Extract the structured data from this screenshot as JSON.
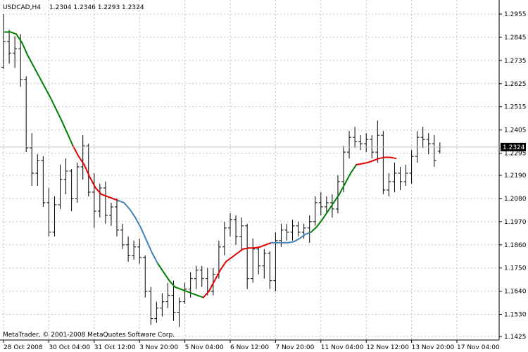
{
  "header": {
    "symbol": "USDCAD,H4",
    "ohlc_values": "1.2304 1.2346 1.2293 1.2324"
  },
  "footer": {
    "copyright": "MetaTrader, © 2001-2008 MetaQuotes Software Corp."
  },
  "colors": {
    "background": "#ffffff",
    "bars": "#000000",
    "grid": "#c0c0c0",
    "ma_green": "#008000",
    "ma_red": "#e00000",
    "ma_blue": "#4682b4",
    "current_price_badge": "#000000"
  },
  "chart_data": {
    "type": "ohlc",
    "current_price": "1.2324",
    "current_price_value": 1.2324,
    "y_ticks": [
      "1.2955",
      "1.2845",
      "1.2735",
      "1.2625",
      "1.2515",
      "1.2405",
      "1.2295",
      "1.2190",
      "1.2080",
      "1.1970",
      "1.1860",
      "1.1750",
      "1.1640",
      "1.1530",
      "1.1425"
    ],
    "y_tick_values": [
      1.2955,
      1.2845,
      1.2735,
      1.2625,
      1.2515,
      1.2405,
      1.2295,
      1.219,
      1.208,
      1.197,
      1.186,
      1.175,
      1.164,
      1.153,
      1.1425
    ],
    "ylim": [
      1.1425,
      1.3005
    ],
    "x_ticks": [
      "28 Oct 2008",
      "30 Oct 04:00",
      "31 Oct 12:00",
      "3 Nov 20:00",
      "5 Nov 04:00",
      "6 Nov 12:00",
      "7 Nov 20:00",
      "11 Nov 04:00",
      "12 Nov 12:00",
      "13 Nov 20:00",
      "17 Nov 04:00"
    ],
    "x_tick_bar_index": [
      0,
      8,
      16,
      24,
      32,
      40,
      48,
      56,
      64,
      72,
      80
    ],
    "grid": true,
    "bars": [
      [
        1.2703,
        1.2955,
        1.2695,
        1.2825
      ],
      [
        1.2825,
        1.288,
        1.272,
        1.277
      ],
      [
        1.277,
        1.285,
        1.27,
        1.279
      ],
      [
        1.279,
        1.286,
        1.261,
        1.2645
      ],
      [
        1.2645,
        1.266,
        1.23,
        1.232
      ],
      [
        1.232,
        1.239,
        1.214,
        1.22
      ],
      [
        1.22,
        1.229,
        1.214,
        1.226
      ],
      [
        1.226,
        1.228,
        1.204,
        1.206
      ],
      [
        1.206,
        1.213,
        1.19,
        1.192
      ],
      [
        1.192,
        1.209,
        1.19,
        1.205
      ],
      [
        1.205,
        1.224,
        1.203,
        1.217
      ],
      [
        1.217,
        1.227,
        1.21,
        1.221
      ],
      [
        1.221,
        1.222,
        1.202,
        1.208
      ],
      [
        1.208,
        1.225,
        1.206,
        1.223
      ],
      [
        1.223,
        1.238,
        1.217,
        1.233
      ],
      [
        1.233,
        1.234,
        1.209,
        1.211
      ],
      [
        1.211,
        1.22,
        1.194,
        1.202
      ],
      [
        1.202,
        1.215,
        1.199,
        1.213
      ],
      [
        1.213,
        1.216,
        1.196,
        1.2
      ],
      [
        1.2,
        1.206,
        1.195,
        1.204
      ],
      [
        1.204,
        1.208,
        1.19,
        1.193
      ],
      [
        1.193,
        1.196,
        1.184,
        1.186
      ],
      [
        1.186,
        1.19,
        1.178,
        1.181
      ],
      [
        1.181,
        1.188,
        1.179,
        1.185
      ],
      [
        1.185,
        1.189,
        1.177,
        1.18
      ],
      [
        1.18,
        1.181,
        1.161,
        1.164
      ],
      [
        1.164,
        1.166,
        1.148,
        1.151
      ],
      [
        1.151,
        1.159,
        1.149,
        1.156
      ],
      [
        1.156,
        1.163,
        1.152,
        1.159
      ],
      [
        1.159,
        1.168,
        1.156,
        1.162
      ],
      [
        1.162,
        1.169,
        1.15,
        1.154
      ],
      [
        1.154,
        1.161,
        1.147,
        1.159
      ],
      [
        1.159,
        1.168,
        1.158,
        1.165
      ],
      [
        1.165,
        1.173,
        1.161,
        1.17
      ],
      [
        1.17,
        1.176,
        1.165,
        1.174
      ],
      [
        1.174,
        1.176,
        1.166,
        1.17
      ],
      [
        1.17,
        1.175,
        1.162,
        1.164
      ],
      [
        1.164,
        1.175,
        1.162,
        1.172
      ],
      [
        1.172,
        1.188,
        1.17,
        1.185
      ],
      [
        1.185,
        1.197,
        1.181,
        1.194
      ],
      [
        1.194,
        1.201,
        1.19,
        1.198
      ],
      [
        1.198,
        1.2,
        1.186,
        1.19
      ],
      [
        1.19,
        1.199,
        1.183,
        1.195
      ],
      [
        1.195,
        1.196,
        1.165,
        1.17
      ],
      [
        1.17,
        1.189,
        1.168,
        1.184
      ],
      [
        1.184,
        1.185,
        1.172,
        1.176
      ],
      [
        1.176,
        1.184,
        1.17,
        1.182
      ],
      [
        1.182,
        1.183,
        1.165,
        1.169
      ],
      [
        1.169,
        1.192,
        1.164,
        1.188
      ],
      [
        1.188,
        1.196,
        1.185,
        1.193
      ],
      [
        1.193,
        1.196,
        1.188,
        1.192
      ],
      [
        1.192,
        1.198,
        1.188,
        1.195
      ],
      [
        1.195,
        1.197,
        1.19,
        1.192
      ],
      [
        1.192,
        1.196,
        1.189,
        1.194
      ],
      [
        1.194,
        1.2,
        1.187,
        1.197
      ],
      [
        1.197,
        1.209,
        1.195,
        1.206
      ],
      [
        1.206,
        1.211,
        1.2,
        1.204
      ],
      [
        1.204,
        1.209,
        1.201,
        1.206
      ],
      [
        1.206,
        1.21,
        1.199,
        1.203
      ],
      [
        1.203,
        1.219,
        1.201,
        1.216
      ],
      [
        1.216,
        1.233,
        1.211,
        1.23
      ],
      [
        1.23,
        1.24,
        1.227,
        1.237
      ],
      [
        1.237,
        1.242,
        1.232,
        1.235
      ],
      [
        1.235,
        1.238,
        1.231,
        1.234
      ],
      [
        1.234,
        1.239,
        1.23,
        1.236
      ],
      [
        1.236,
        1.238,
        1.227,
        1.23
      ],
      [
        1.23,
        1.245,
        1.225,
        1.238
      ],
      [
        1.238,
        1.24,
        1.21,
        1.212
      ],
      [
        1.212,
        1.22,
        1.209,
        1.216
      ],
      [
        1.216,
        1.225,
        1.211,
        1.22
      ],
      [
        1.22,
        1.223,
        1.212,
        1.216
      ],
      [
        1.216,
        1.224,
        1.214,
        1.22
      ],
      [
        1.22,
        1.231,
        1.215,
        1.228
      ],
      [
        1.228,
        1.24,
        1.225,
        1.237
      ],
      [
        1.237,
        1.242,
        1.232,
        1.236
      ],
      [
        1.236,
        1.239,
        1.229,
        1.234
      ],
      [
        1.234,
        1.238,
        1.223,
        1.226
      ],
      [
        1.2304,
        1.2346,
        1.2293,
        1.2324
      ]
    ],
    "moving_average": [
      {
        "i": 0,
        "v": 1.287,
        "c": "green"
      },
      {
        "i": 1,
        "v": 1.287,
        "c": "green"
      },
      {
        "i": 2,
        "v": 1.286,
        "c": "green"
      },
      {
        "i": 3,
        "v": 1.282,
        "c": "green"
      },
      {
        "i": 4,
        "v": 1.276,
        "c": "green"
      },
      {
        "i": 6,
        "v": 1.266,
        "c": "green"
      },
      {
        "i": 8,
        "v": 1.256,
        "c": "green"
      },
      {
        "i": 10,
        "v": 1.245,
        "c": "green"
      },
      {
        "i": 12,
        "v": 1.233,
        "c": "green"
      },
      {
        "i": 13,
        "v": 1.228,
        "c": "red"
      },
      {
        "i": 14,
        "v": 1.224,
        "c": "red"
      },
      {
        "i": 15,
        "v": 1.218,
        "c": "red"
      },
      {
        "i": 16,
        "v": 1.213,
        "c": "red"
      },
      {
        "i": 17,
        "v": 1.21,
        "c": "red"
      },
      {
        "i": 18,
        "v": 1.209,
        "c": "red"
      },
      {
        "i": 19,
        "v": 1.208,
        "c": "red"
      },
      {
        "i": 20,
        "v": 1.207,
        "c": "red"
      },
      {
        "i": 21,
        "v": 1.206,
        "c": "blue"
      },
      {
        "i": 22,
        "v": 1.203,
        "c": "blue"
      },
      {
        "i": 23,
        "v": 1.199,
        "c": "blue"
      },
      {
        "i": 24,
        "v": 1.194,
        "c": "blue"
      },
      {
        "i": 25,
        "v": 1.188,
        "c": "blue"
      },
      {
        "i": 26,
        "v": 1.182,
        "c": "blue"
      },
      {
        "i": 27,
        "v": 1.177,
        "c": "blue"
      },
      {
        "i": 28,
        "v": 1.173,
        "c": "green"
      },
      {
        "i": 29,
        "v": 1.169,
        "c": "green"
      },
      {
        "i": 30,
        "v": 1.166,
        "c": "green"
      },
      {
        "i": 31,
        "v": 1.165,
        "c": "green"
      },
      {
        "i": 32,
        "v": 1.164,
        "c": "green"
      },
      {
        "i": 34,
        "v": 1.162,
        "c": "green"
      },
      {
        "i": 35,
        "v": 1.161,
        "c": "green"
      },
      {
        "i": 36,
        "v": 1.164,
        "c": "red"
      },
      {
        "i": 37,
        "v": 1.169,
        "c": "red"
      },
      {
        "i": 38,
        "v": 1.174,
        "c": "red"
      },
      {
        "i": 39,
        "v": 1.178,
        "c": "red"
      },
      {
        "i": 40,
        "v": 1.18,
        "c": "red"
      },
      {
        "i": 41,
        "v": 1.182,
        "c": "red"
      },
      {
        "i": 42,
        "v": 1.184,
        "c": "red"
      },
      {
        "i": 43,
        "v": 1.1845,
        "c": "red"
      },
      {
        "i": 44,
        "v": 1.1845,
        "c": "red"
      },
      {
        "i": 45,
        "v": 1.185,
        "c": "red"
      },
      {
        "i": 46,
        "v": 1.186,
        "c": "red"
      },
      {
        "i": 47,
        "v": 1.187,
        "c": "red"
      },
      {
        "i": 48,
        "v": 1.187,
        "c": "blue"
      },
      {
        "i": 49,
        "v": 1.187,
        "c": "blue"
      },
      {
        "i": 50,
        "v": 1.187,
        "c": "blue"
      },
      {
        "i": 51,
        "v": 1.1875,
        "c": "blue"
      },
      {
        "i": 52,
        "v": 1.189,
        "c": "blue"
      },
      {
        "i": 53,
        "v": 1.191,
        "c": "blue"
      },
      {
        "i": 54,
        "v": 1.192,
        "c": "blue"
      },
      {
        "i": 55,
        "v": 1.1945,
        "c": "green"
      },
      {
        "i": 56,
        "v": 1.198,
        "c": "green"
      },
      {
        "i": 57,
        "v": 1.202,
        "c": "green"
      },
      {
        "i": 58,
        "v": 1.206,
        "c": "green"
      },
      {
        "i": 59,
        "v": 1.21,
        "c": "green"
      },
      {
        "i": 60,
        "v": 1.215,
        "c": "green"
      },
      {
        "i": 61,
        "v": 1.22,
        "c": "green"
      },
      {
        "i": 62,
        "v": 1.224,
        "c": "green"
      },
      {
        "i": 63,
        "v": 1.2245,
        "c": "red"
      },
      {
        "i": 64,
        "v": 1.225,
        "c": "red"
      },
      {
        "i": 65,
        "v": 1.226,
        "c": "red"
      },
      {
        "i": 66,
        "v": 1.227,
        "c": "red"
      },
      {
        "i": 67,
        "v": 1.2275,
        "c": "red"
      },
      {
        "i": 68,
        "v": 1.2275,
        "c": "red"
      },
      {
        "i": 69,
        "v": 1.227,
        "c": "red"
      }
    ]
  }
}
